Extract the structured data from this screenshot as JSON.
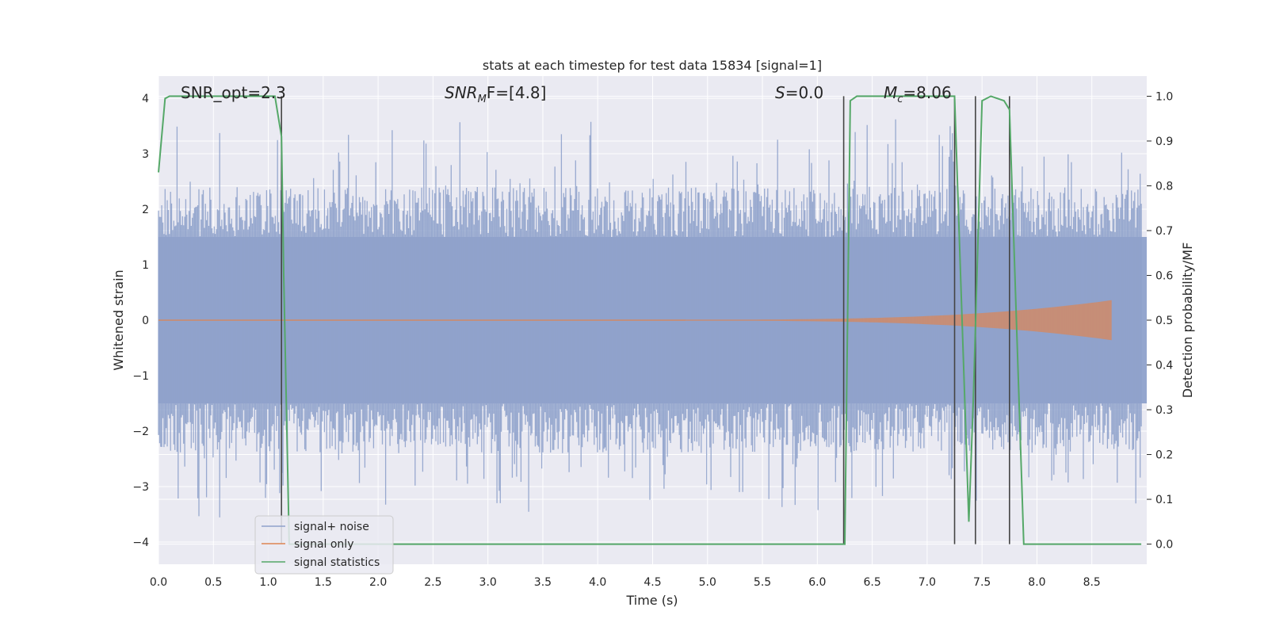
{
  "chart_data": {
    "type": "line",
    "title": "stats at each timestep for test data 15834 [signal=1]",
    "xlabel": "Time (s)",
    "ylabel": "Whitened strain",
    "y2label": "Detection probability/MF",
    "xlim": [
      0.0,
      9.0
    ],
    "ylim": [
      -4.4,
      4.4
    ],
    "y2lim": [
      -0.045,
      1.045
    ],
    "xticks": [
      "0.0",
      "0.5",
      "1.0",
      "1.5",
      "2.0",
      "2.5",
      "3.0",
      "3.5",
      "4.0",
      "4.5",
      "5.0",
      "5.5",
      "6.0",
      "6.5",
      "7.0",
      "7.5",
      "8.0",
      "8.5"
    ],
    "yticks": [
      "4",
      "3",
      "2",
      "1",
      "0",
      "−1",
      "−2",
      "−3",
      "−4"
    ],
    "y2ticks": [
      "1.0",
      "0.9",
      "0.8",
      "0.7",
      "0.6",
      "0.5",
      "0.4",
      "0.3",
      "0.2",
      "0.1",
      "0.0"
    ],
    "grid": true,
    "legend_position": "lower-left",
    "annotations": {
      "snr_opt": "SNR_opt=2.3",
      "snr_mf_base": "SNR",
      "snr_mf_sub": "M",
      "snr_mf_rest": "F=[4.8]",
      "s_label": "S",
      "s_rest": "=0.0",
      "mc_label": "M",
      "mc_sub": "c",
      "mc_rest": "=8.06"
    },
    "series": [
      {
        "name": "signal+ noise",
        "color": "#8fa2cb",
        "description_style": "dense noise band",
        "amplitude_core": 1.5,
        "amplitude_peak_range": [
          -3.9,
          3.8
        ]
      },
      {
        "name": "signal only",
        "color": "#dd8452",
        "chirp_start_x": 4.8,
        "chirp_end_x": 8.68,
        "chirp_end_amplitude": 0.35
      },
      {
        "name": "signal statistics",
        "color": "#55a868",
        "axis": "y2",
        "x": [
          0.0,
          0.06,
          0.1,
          1.06,
          1.12,
          1.14,
          1.19,
          6.25,
          6.3,
          6.36,
          7.25,
          7.38,
          7.42,
          7.5,
          7.58,
          7.7,
          7.75,
          7.88,
          8.95
        ],
        "y": [
          0.83,
          0.995,
          1.0,
          1.0,
          0.91,
          0.6,
          0.0,
          0.0,
          0.99,
          1.0,
          1.0,
          0.05,
          0.32,
          0.99,
          1.0,
          0.99,
          0.97,
          0.0,
          0.0
        ]
      }
    ],
    "vertical_markers": {
      "color": "#444444",
      "x": [
        1.12,
        6.24,
        7.25,
        7.44,
        7.75
      ]
    }
  }
}
